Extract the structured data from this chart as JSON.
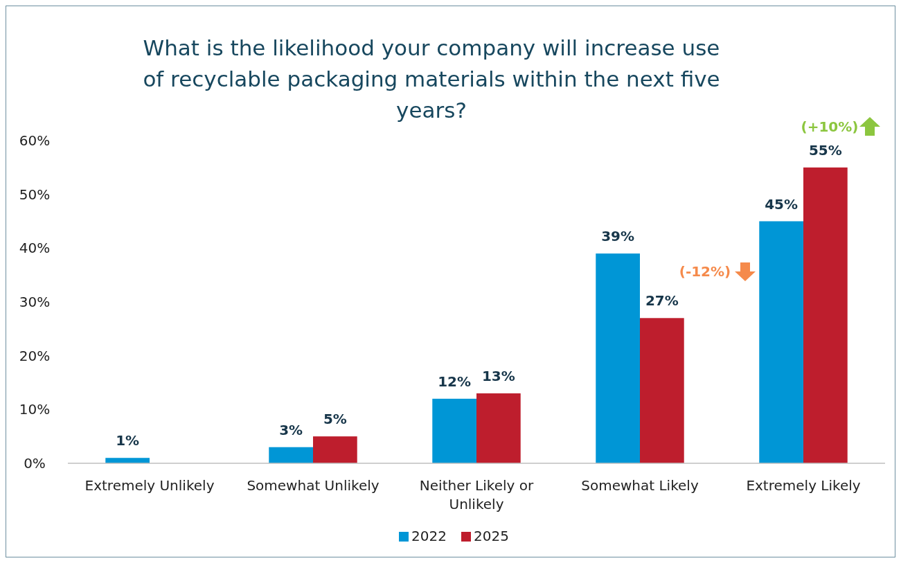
{
  "chart_data": {
    "type": "bar",
    "title": "What is the likelihood your company will increase use of recyclable packaging materials within the next five years?",
    "categories": [
      "Extremely Unlikely",
      "Somewhat Unlikely",
      "Neither Likely or Unlikely",
      "Somewhat Likely",
      "Extremely Likely"
    ],
    "series": [
      {
        "name": "2022",
        "color": "#0096d6",
        "values": [
          1,
          3,
          12,
          39,
          45
        ],
        "value_labels": [
          "1%",
          "3%",
          "12%",
          "39%",
          "45%"
        ]
      },
      {
        "name": "2025",
        "color": "#be1e2d",
        "values": [
          null,
          5,
          13,
          27,
          55
        ],
        "value_labels": [
          null,
          "5%",
          "13%",
          "27%",
          "55%"
        ]
      }
    ],
    "ylim": [
      0,
      60
    ],
    "yticks": [
      {
        "value": 0,
        "label": "0%"
      },
      {
        "value": 10,
        "label": "10%"
      },
      {
        "value": 20,
        "label": "20%"
      },
      {
        "value": 30,
        "label": "30%"
      },
      {
        "value": 40,
        "label": "40%"
      },
      {
        "value": 50,
        "label": "50%"
      },
      {
        "value": 60,
        "label": "60%"
      }
    ],
    "grid": false,
    "legend": "bottom",
    "annotations": [
      "(-12%)",
      "(+10%)"
    ]
  }
}
